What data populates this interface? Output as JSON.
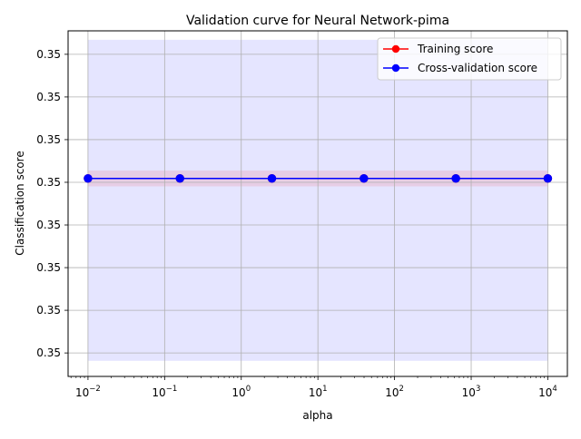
{
  "chart_data": {
    "type": "line",
    "title": "Validation curve for Neural Network-pima",
    "xlabel": "alpha",
    "ylabel": "Classification score",
    "x_scale": "log",
    "xlim": [
      0.0055,
      18000
    ],
    "x_ticks": [
      {
        "value": 0.01,
        "base": "10",
        "exp": "−2"
      },
      {
        "value": 0.1,
        "base": "10",
        "exp": "−1"
      },
      {
        "value": 1,
        "base": "10",
        "exp": "0"
      },
      {
        "value": 10,
        "base": "10",
        "exp": "1"
      },
      {
        "value": 100,
        "base": "10",
        "exp": "2"
      },
      {
        "value": 1000,
        "base": "10",
        "exp": "3"
      },
      {
        "value": 10000,
        "base": "10",
        "exp": "4"
      }
    ],
    "ylim": [
      0.34889,
      0.35051
    ],
    "y_ticks": [
      0.349,
      0.3492,
      0.3494,
      0.3496,
      0.3498,
      0.35,
      0.3502,
      0.3504
    ],
    "y_tick_labels": [
      "0.35",
      "0.35",
      "0.35",
      "0.35",
      "0.35",
      "0.35",
      "0.35",
      "0.35"
    ],
    "grid": true,
    "legend_position": "top-right",
    "x": [
      0.01,
      0.1585,
      2.512,
      39.81,
      631.0,
      10000
    ],
    "series": [
      {
        "name": "Training score",
        "color": "#ff0000",
        "marker": "circle",
        "values": [
          0.349818,
          0.349818,
          0.349818,
          0.349818,
          0.349818,
          0.349818
        ],
        "band": [
          0.349781,
          0.349855
        ],
        "band_color": "#ff0000"
      },
      {
        "name": "Cross-validation score",
        "color": "#0000ff",
        "marker": "circle",
        "values": [
          0.349818,
          0.349818,
          0.349818,
          0.349818,
          0.349818,
          0.349818
        ],
        "band": [
          0.348963,
          0.350468
        ],
        "band_color": "#0000ff"
      }
    ]
  }
}
